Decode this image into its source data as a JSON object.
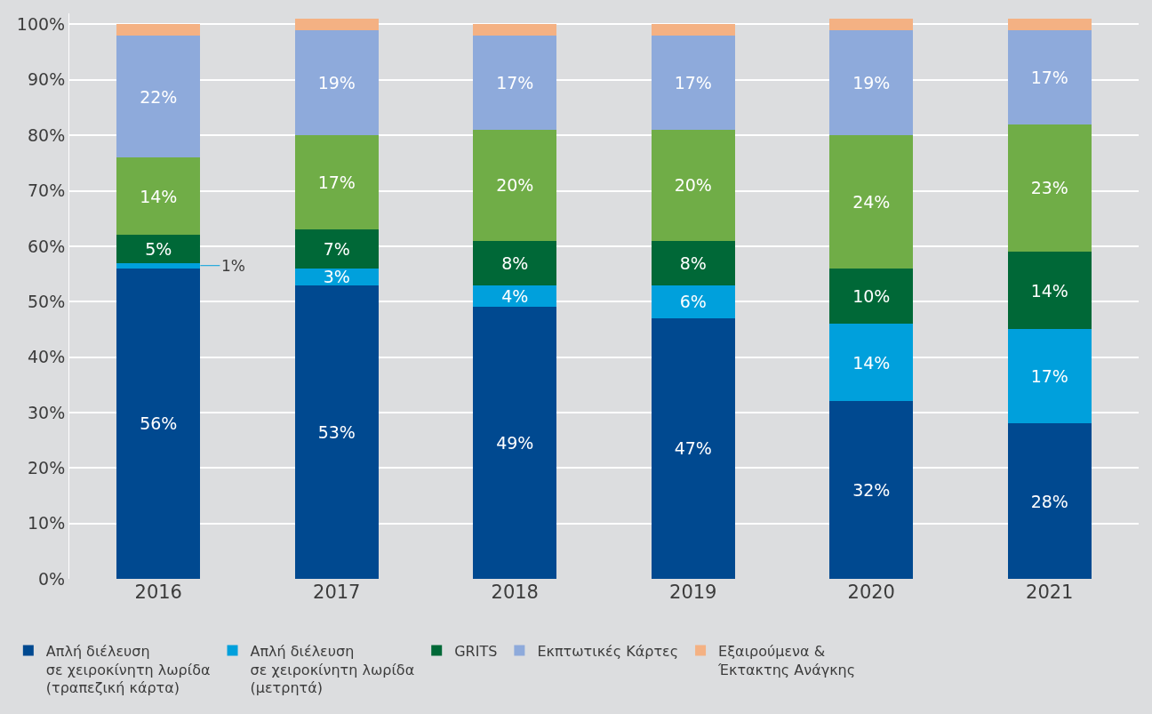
{
  "chart_data": {
    "type": "bar",
    "stacked": true,
    "categories": [
      "2016",
      "2017",
      "2018",
      "2019",
      "2020",
      "2021"
    ],
    "series": [
      {
        "name": "Απλή διέλευση\nσε χειροκίνητη λωρίδα\n(τραπεζική κάρτα)",
        "color": "#004990",
        "values": [
          56,
          53,
          49,
          47,
          32,
          28
        ],
        "value_labels": [
          "56%",
          "53%",
          "49%",
          "47%",
          "32%",
          "28%"
        ]
      },
      {
        "name": "Απλή διέλευση\nσε χειροκίνητη λωρίδα\n(μετρητά)",
        "color": "#00a0dc",
        "values": [
          1,
          3,
          4,
          6,
          14,
          17
        ],
        "value_labels": [
          "1%",
          "3%",
          "4%",
          "6%",
          "14%",
          "17%"
        ]
      },
      {
        "name": "GRITS",
        "color": "#006837",
        "values": [
          5,
          7,
          8,
          8,
          10,
          14
        ],
        "value_labels": [
          "5%",
          "7%",
          "8%",
          "8%",
          "10%",
          "14%"
        ]
      },
      {
        "color": "#70ad47",
        "values": [
          14,
          17,
          20,
          20,
          24,
          23
        ],
        "value_labels": [
          "14%",
          "17%",
          "20%",
          "20%",
          "24%",
          "23%"
        ]
      },
      {
        "name": "Εκπτωτικές Κάρτες",
        "color": "#8eaadb",
        "values": [
          22,
          19,
          17,
          17,
          19,
          17
        ],
        "value_labels": [
          "22%",
          "19%",
          "17%",
          "17%",
          "19%",
          "17%"
        ]
      },
      {
        "name": "Εξαιρούμενα &\nΈκτακτης Ανάγκης",
        "color": "#f4b183",
        "values": [
          2,
          2,
          2,
          2,
          2,
          2
        ]
      }
    ],
    "ylim": [
      0,
      102
    ],
    "yticks": [
      {
        "value": 0,
        "label": "0%"
      },
      {
        "value": 10,
        "label": "10%"
      },
      {
        "value": 20,
        "label": "20%"
      },
      {
        "value": 30,
        "label": "30%"
      },
      {
        "value": 40,
        "label": "40%"
      },
      {
        "value": 50,
        "label": "50%"
      },
      {
        "value": 60,
        "label": "60%"
      },
      {
        "value": 70,
        "label": "70%"
      },
      {
        "value": 80,
        "label": "80%"
      },
      {
        "value": 90,
        "label": "90%"
      },
      {
        "value": 100,
        "label": "100%"
      }
    ],
    "grid": "y",
    "legend": "bottom"
  }
}
